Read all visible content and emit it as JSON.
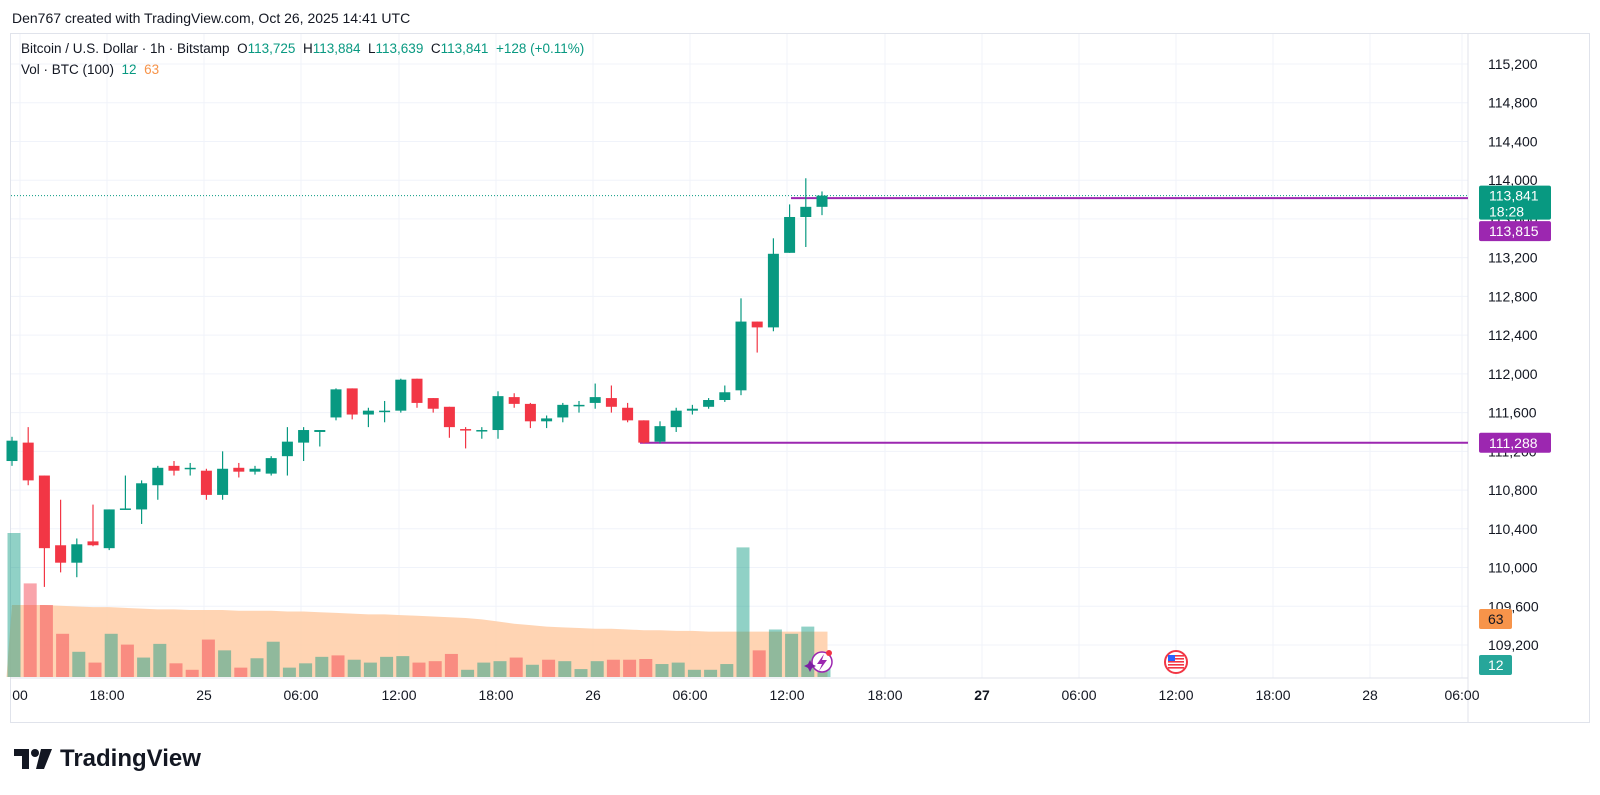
{
  "header": {
    "text": "Den767 created with TradingView.com, Oct 26, 2025 14:41 UTC"
  },
  "legend": {
    "symbol": "Bitcoin / U.S. Dollar · 1h · Bitstamp",
    "o_key": "O",
    "o_val": "113,725",
    "h_key": "H",
    "h_val": "113,884",
    "l_key": "L",
    "l_val": "113,639",
    "c_key": "C",
    "c_val": "113,841",
    "change": "+128 (+0.11%)",
    "vol_label": "Vol · BTC (100)",
    "vol_val": "12",
    "vol_ma": "63"
  },
  "price_tags": {
    "current": "113,841",
    "countdown": "18:28",
    "upper_line": "113,815",
    "lower_line": "111,288",
    "vol_ma": "63",
    "vol": "12"
  },
  "colors": {
    "up": "#089981",
    "down": "#f23645",
    "line": "#9c27b0",
    "vol_ma_fill": "#ffcca6",
    "vol_ma_tag": "#f7944a",
    "grid": "#f0f3fa"
  },
  "footer": {
    "brand": "TradingView",
    "logo_icon": "tradingview-logo-icon"
  },
  "chart_data": {
    "type": "candlestick",
    "y_ticks": [
      109200,
      109600,
      110000,
      110400,
      110800,
      111200,
      111600,
      112000,
      112400,
      112800,
      113200,
      113600,
      114000,
      114400,
      114800,
      115200
    ],
    "y_tick_labels": [
      "109,200",
      "109,600",
      "110,000",
      "110,400",
      "110,800",
      "111,200",
      "111,600",
      "112,000",
      "112,400",
      "112,800",
      "113,200",
      "113,600",
      "114,000",
      "114,400",
      "114,800",
      "115,200"
    ],
    "ylim": [
      109000,
      115400
    ],
    "x_labels": [
      "00",
      "18:00",
      "25",
      "06:00",
      "12:00",
      "18:00",
      "26",
      "06:00",
      "12:00",
      "18:00",
      "27",
      "06:00",
      "12:00",
      "18:00",
      "28",
      "06:00"
    ],
    "x_label_bold": [
      false,
      false,
      false,
      false,
      false,
      false,
      false,
      false,
      false,
      false,
      true,
      false,
      false,
      false,
      false,
      false
    ],
    "horizontal_lines": [
      113815,
      111288
    ],
    "candles": [
      {
        "o": 111100,
        "h": 111350,
        "l": 111050,
        "c": 111310
      },
      {
        "o": 111290,
        "h": 111450,
        "l": 110850,
        "c": 110900
      },
      {
        "o": 110950,
        "h": 110950,
        "l": 109800,
        "c": 110200
      },
      {
        "o": 110230,
        "h": 110700,
        "l": 109950,
        "c": 110050
      },
      {
        "o": 110050,
        "h": 110300,
        "l": 109900,
        "c": 110240
      },
      {
        "o": 110270,
        "h": 110650,
        "l": 110220,
        "c": 110230
      },
      {
        "o": 110200,
        "h": 110600,
        "l": 110180,
        "c": 110600
      },
      {
        "o": 110600,
        "h": 110950,
        "l": 110600,
        "c": 110610
      },
      {
        "o": 110600,
        "h": 110900,
        "l": 110450,
        "c": 110870
      },
      {
        "o": 110850,
        "h": 111050,
        "l": 110700,
        "c": 111030
      },
      {
        "o": 111050,
        "h": 111100,
        "l": 110950,
        "c": 111000
      },
      {
        "o": 111030,
        "h": 111080,
        "l": 110950,
        "c": 111030
      },
      {
        "o": 111000,
        "h": 111020,
        "l": 110700,
        "c": 110750
      },
      {
        "o": 110750,
        "h": 111200,
        "l": 110700,
        "c": 111020
      },
      {
        "o": 111030,
        "h": 111080,
        "l": 110930,
        "c": 110990
      },
      {
        "o": 110990,
        "h": 111050,
        "l": 110960,
        "c": 111020
      },
      {
        "o": 110970,
        "h": 111150,
        "l": 110950,
        "c": 111130
      },
      {
        "o": 111150,
        "h": 111450,
        "l": 110950,
        "c": 111300
      },
      {
        "o": 111290,
        "h": 111450,
        "l": 111100,
        "c": 111420
      },
      {
        "o": 111400,
        "h": 111420,
        "l": 111250,
        "c": 111420
      },
      {
        "o": 111550,
        "h": 111850,
        "l": 111520,
        "c": 111840
      },
      {
        "o": 111850,
        "h": 111850,
        "l": 111530,
        "c": 111580
      },
      {
        "o": 111580,
        "h": 111650,
        "l": 111450,
        "c": 111620
      },
      {
        "o": 111620,
        "h": 111720,
        "l": 111500,
        "c": 111620
      },
      {
        "o": 111620,
        "h": 111950,
        "l": 111600,
        "c": 111940
      },
      {
        "o": 111950,
        "h": 111950,
        "l": 111650,
        "c": 111700
      },
      {
        "o": 111750,
        "h": 111750,
        "l": 111600,
        "c": 111640
      },
      {
        "o": 111660,
        "h": 111660,
        "l": 111340,
        "c": 111450
      },
      {
        "o": 111430,
        "h": 111450,
        "l": 111230,
        "c": 111420
      },
      {
        "o": 111420,
        "h": 111450,
        "l": 111330,
        "c": 111420
      },
      {
        "o": 111420,
        "h": 111820,
        "l": 111330,
        "c": 111770
      },
      {
        "o": 111760,
        "h": 111800,
        "l": 111650,
        "c": 111690
      },
      {
        "o": 111690,
        "h": 111700,
        "l": 111440,
        "c": 111510
      },
      {
        "o": 111510,
        "h": 111570,
        "l": 111440,
        "c": 111540
      },
      {
        "o": 111550,
        "h": 111700,
        "l": 111500,
        "c": 111680
      },
      {
        "o": 111670,
        "h": 111720,
        "l": 111600,
        "c": 111680
      },
      {
        "o": 111700,
        "h": 111900,
        "l": 111640,
        "c": 111760
      },
      {
        "o": 111750,
        "h": 111880,
        "l": 111600,
        "c": 111660
      },
      {
        "o": 111650,
        "h": 111700,
        "l": 111500,
        "c": 111520
      },
      {
        "o": 111520,
        "h": 111520,
        "l": 111280,
        "c": 111290
      },
      {
        "o": 111300,
        "h": 111510,
        "l": 111280,
        "c": 111460
      },
      {
        "o": 111450,
        "h": 111650,
        "l": 111400,
        "c": 111620
      },
      {
        "o": 111620,
        "h": 111680,
        "l": 111580,
        "c": 111640
      },
      {
        "o": 111660,
        "h": 111750,
        "l": 111640,
        "c": 111730
      },
      {
        "o": 111730,
        "h": 111880,
        "l": 111710,
        "c": 111810
      },
      {
        "o": 111830,
        "h": 112780,
        "l": 111780,
        "c": 112540
      },
      {
        "o": 112540,
        "h": 112540,
        "l": 112220,
        "c": 112480
      },
      {
        "o": 112480,
        "h": 113400,
        "l": 112440,
        "c": 113240
      },
      {
        "o": 113250,
        "h": 113750,
        "l": 113250,
        "c": 113620
      },
      {
        "o": 113620,
        "h": 114020,
        "l": 113310,
        "c": 113725
      },
      {
        "o": 113725,
        "h": 113884,
        "l": 113639,
        "c": 113841
      }
    ],
    "volume_bars": [
      {
        "v": 2.0,
        "up": true
      },
      {
        "v": 1.3,
        "up": false
      },
      {
        "v": 1.0,
        "up": false
      },
      {
        "v": 0.6,
        "up": false
      },
      {
        "v": 0.35,
        "up": true
      },
      {
        "v": 0.2,
        "up": false
      },
      {
        "v": 0.6,
        "up": true
      },
      {
        "v": 0.45,
        "up": false
      },
      {
        "v": 0.27,
        "up": true
      },
      {
        "v": 0.46,
        "up": true
      },
      {
        "v": 0.19,
        "up": false
      },
      {
        "v": 0.1,
        "up": false
      },
      {
        "v": 0.52,
        "up": false
      },
      {
        "v": 0.37,
        "up": true
      },
      {
        "v": 0.13,
        "up": false
      },
      {
        "v": 0.26,
        "up": true
      },
      {
        "v": 0.49,
        "up": true
      },
      {
        "v": 0.13,
        "up": true
      },
      {
        "v": 0.19,
        "up": true
      },
      {
        "v": 0.28,
        "up": true
      },
      {
        "v": 0.3,
        "up": false
      },
      {
        "v": 0.24,
        "up": true
      },
      {
        "v": 0.2,
        "up": true
      },
      {
        "v": 0.28,
        "up": true
      },
      {
        "v": 0.29,
        "up": true
      },
      {
        "v": 0.2,
        "up": false
      },
      {
        "v": 0.22,
        "up": false
      },
      {
        "v": 0.32,
        "up": false
      },
      {
        "v": 0.1,
        "up": true
      },
      {
        "v": 0.2,
        "up": true
      },
      {
        "v": 0.22,
        "up": true
      },
      {
        "v": 0.27,
        "up": false
      },
      {
        "v": 0.17,
        "up": true
      },
      {
        "v": 0.24,
        "up": false
      },
      {
        "v": 0.22,
        "up": true
      },
      {
        "v": 0.11,
        "up": true
      },
      {
        "v": 0.22,
        "up": true
      },
      {
        "v": 0.24,
        "up": false
      },
      {
        "v": 0.24,
        "up": false
      },
      {
        "v": 0.25,
        "up": false
      },
      {
        "v": 0.18,
        "up": true
      },
      {
        "v": 0.2,
        "up": true
      },
      {
        "v": 0.1,
        "up": true
      },
      {
        "v": 0.1,
        "up": true
      },
      {
        "v": 0.18,
        "up": true
      },
      {
        "v": 1.8,
        "up": true
      },
      {
        "v": 0.37,
        "up": false
      },
      {
        "v": 0.66,
        "up": true
      },
      {
        "v": 0.6,
        "up": true
      },
      {
        "v": 0.7,
        "up": true
      },
      {
        "v": 0.12,
        "up": true
      }
    ],
    "volume_ma": [
      1.0,
      1.0,
      1.0,
      0.99,
      0.98,
      0.97,
      0.97,
      0.96,
      0.95,
      0.94,
      0.94,
      0.93,
      0.93,
      0.93,
      0.92,
      0.92,
      0.92,
      0.91,
      0.91,
      0.9,
      0.89,
      0.88,
      0.87,
      0.87,
      0.86,
      0.85,
      0.84,
      0.83,
      0.82,
      0.8,
      0.77,
      0.74,
      0.72,
      0.7,
      0.69,
      0.68,
      0.67,
      0.67,
      0.66,
      0.65,
      0.65,
      0.64,
      0.64,
      0.63,
      0.63,
      0.63,
      0.63,
      0.63,
      0.63,
      0.63,
      0.63
    ]
  }
}
